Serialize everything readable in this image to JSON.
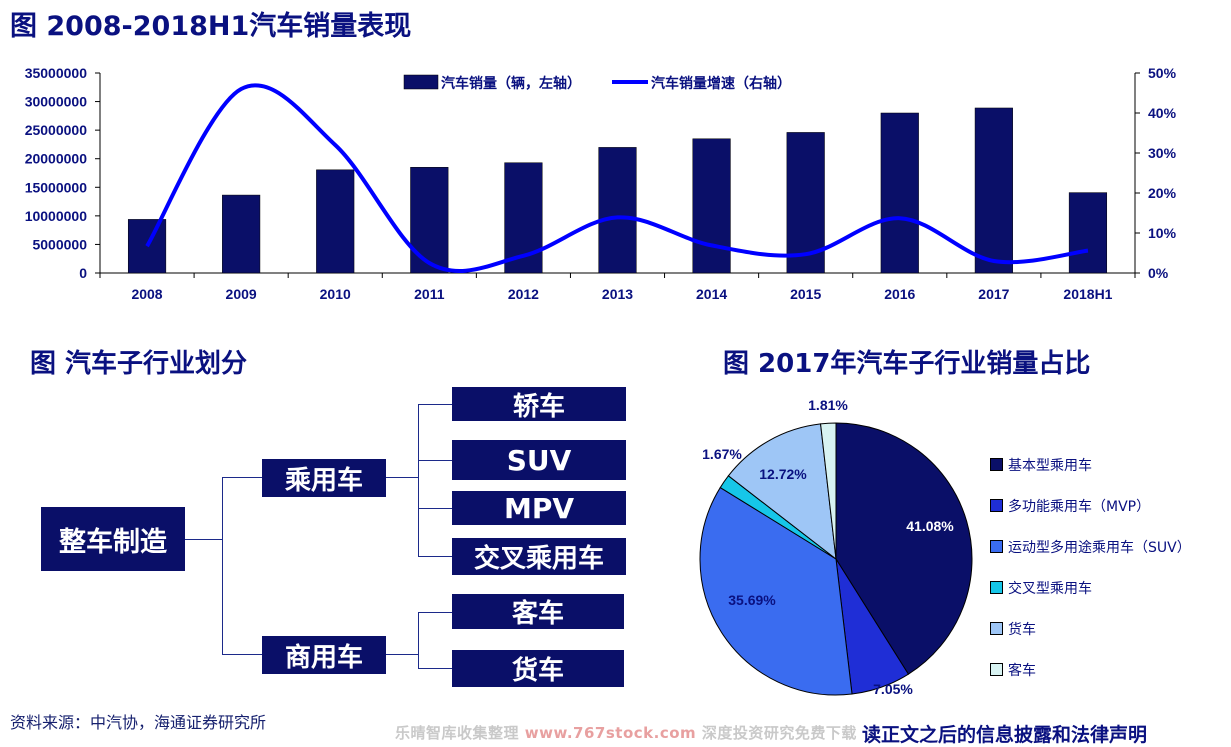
{
  "titles": {
    "sales_chart": "图 2008-2018H1汽车销量表现",
    "segmentation": "图 汽车子行业划分",
    "pie_chart": "图 2017年汽车子行业销量占比"
  },
  "tree": {
    "root": "整车制造",
    "passenger": "乘用车",
    "commercial": "商用车",
    "passenger_children": [
      "轿车",
      "SUV",
      "MPV",
      "交叉乘用车"
    ],
    "commercial_children": [
      "客车",
      "货车"
    ]
  },
  "footer": {
    "source": "资料来源：中汽协，海通证券研究所",
    "watermark_left": "乐晴智库收集整理 ",
    "watermark_url": "www.767stock.com",
    "watermark_right": " 深度投资研究免费下载",
    "disclaimer": "读正文之后的信息披露和法律声明"
  },
  "colors": {
    "bar": "#0a0f68",
    "line": "#0000ff",
    "title": "#0a1180"
  },
  "chart_data": [
    {
      "type": "bar",
      "title": "图 2008-2018H1汽车销量表现",
      "categories": [
        "2008",
        "2009",
        "2010",
        "2011",
        "2012",
        "2013",
        "2014",
        "2015",
        "2016",
        "2017",
        "2018H1"
      ],
      "series": [
        {
          "name": "汽车销量（辆，左轴）",
          "type": "bar",
          "axis": "left",
          "values": [
            9380000,
            13640000,
            18060000,
            18500000,
            19300000,
            21980000,
            23490000,
            24600000,
            28000000,
            28880000,
            14070000
          ]
        },
        {
          "name": "汽车销量增速（右轴）",
          "type": "line",
          "axis": "right",
          "values": [
            0.067,
            0.46,
            0.32,
            0.025,
            0.043,
            0.139,
            0.069,
            0.047,
            0.137,
            0.03,
            0.056
          ]
        }
      ],
      "y_left": {
        "ylim": [
          0,
          35000000
        ],
        "ticks": [
          "0",
          "5000000",
          "10000000",
          "15000000",
          "20000000",
          "25000000",
          "30000000",
          "35000000"
        ]
      },
      "y_right": {
        "ylim": [
          0,
          0.5
        ],
        "ticks": [
          "0%",
          "10%",
          "20%",
          "30%",
          "40%",
          "50%"
        ]
      },
      "legend": "top-center",
      "grid": false
    },
    {
      "type": "pie",
      "title": "图 2017年汽车子行业销量占比",
      "slices": [
        {
          "name": "基本型乘用车",
          "value": 41.08,
          "label": "41.08%",
          "color": "#0a0f68"
        },
        {
          "name": "多功能乘用车（MVP）",
          "value": 7.05,
          "label": "7.05%",
          "color": "#1f2ed6"
        },
        {
          "name": "运动型多用途乘用车（SUV）",
          "value": 35.69,
          "label": "35.69%",
          "color": "#3a6cf0"
        },
        {
          "name": "交叉型乘用车",
          "value": 1.67,
          "label": "1.67%",
          "color": "#16c6e8"
        },
        {
          "name": "货车",
          "value": 12.72,
          "label": "12.72%",
          "color": "#9ec6f6"
        },
        {
          "name": "客车",
          "value": 1.81,
          "label": "1.81%",
          "color": "#d8f3f2"
        }
      ],
      "legend": "right"
    }
  ]
}
